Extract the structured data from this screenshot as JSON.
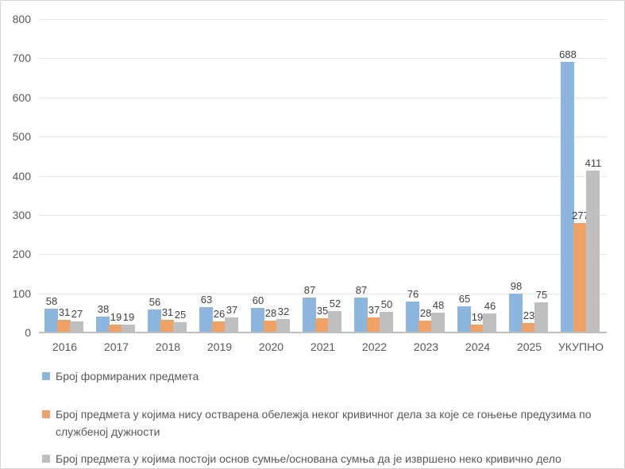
{
  "chart_data": {
    "type": "bar",
    "title": "",
    "xlabel": "",
    "ylabel": "",
    "categories": [
      "2016",
      "2017",
      "2018",
      "2019",
      "2020",
      "2021",
      "2022",
      "2023",
      "2024",
      "2025",
      "УКУПНО"
    ],
    "series": [
      {
        "name": "Број формираних предмета",
        "color": "#8db6df",
        "values": [
          58,
          38,
          56,
          63,
          60,
          87,
          87,
          76,
          65,
          98,
          688
        ]
      },
      {
        "name": "Број предмета у којима нису остварена обележја неког кривичног дела за које се гоњење предузима по службеној дужности",
        "color": "#f0a266",
        "values": [
          31,
          19,
          31,
          26,
          28,
          35,
          37,
          28,
          19,
          23,
          277
        ]
      },
      {
        "name": "Број предмета у којима постоји основ сумње/основана сумња да је извршено неко кривично дело",
        "color": "#c0bfbf",
        "values": [
          27,
          19,
          25,
          37,
          32,
          52,
          50,
          48,
          46,
          75,
          411
        ]
      }
    ],
    "ylim": [
      0,
      800
    ],
    "y_ticks": [
      "0",
      "100",
      "200",
      "300",
      "400",
      "500",
      "600",
      "700",
      "800"
    ],
    "grid": true,
    "data_labels": true,
    "legend_position": "bottom"
  }
}
